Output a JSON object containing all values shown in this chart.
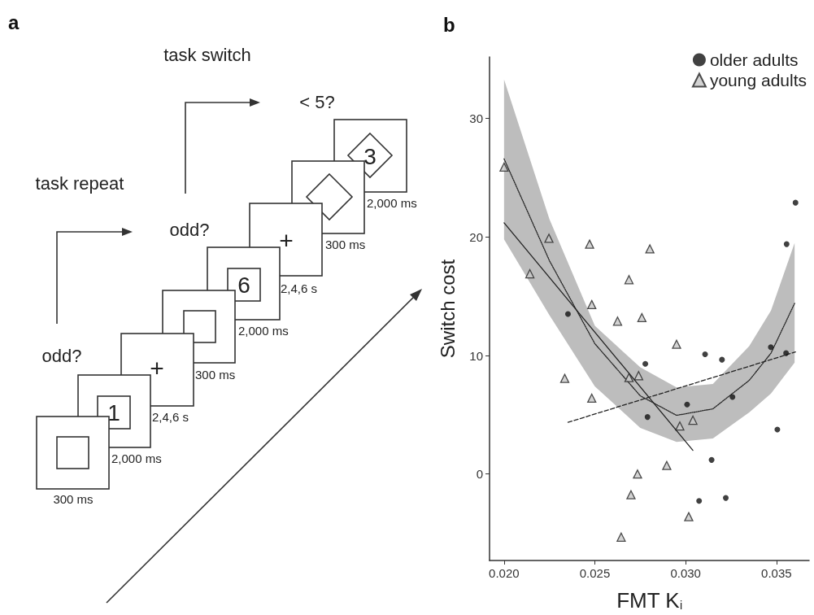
{
  "chart_data": [
    {
      "type": "other",
      "title": "a",
      "annotations": [
        "task switch",
        "< 5?",
        "task repeat",
        "odd?",
        "odd?",
        "300 ms",
        "2,000 ms",
        "2,4,6 s",
        "300 ms",
        "2,000 ms",
        "2,4,6 s",
        "300 ms",
        "2,000 ms",
        "1",
        "+",
        "6",
        "+",
        "3"
      ]
    },
    {
      "type": "scatter",
      "title": "b",
      "xlabel": "FMT K$_{i}$",
      "ylabel": "Switch cost",
      "xlim": [
        0.0192,
        0.0368
      ],
      "xticks": [
        {
          "value": 0.02,
          "label": "0.020"
        },
        {
          "value": 0.025,
          "label": "0.025"
        },
        {
          "value": 0.03,
          "label": "0.030"
        },
        {
          "value": 0.035,
          "label": "0.035"
        }
      ],
      "ylim": [
        -7.3,
        35.2
      ],
      "yticks": [
        0,
        10,
        20,
        30
      ],
      "legend": "top right",
      "series": [
        {
          "type": "line",
          "color": "#222222",
          "marker": "none",
          "line_style": "dotted",
          "x": [
            0.02,
            0.0225,
            0.025,
            0.0275,
            0.0295,
            0.0315,
            0.0335,
            0.0347,
            0.036
          ],
          "values": [
            26.6,
            18.0,
            11.0,
            6.6,
            4.95,
            5.5,
            7.9,
            10.2,
            14.4
          ],
          "lower": [
            19.8,
            13.4,
            7.4,
            3.9,
            2.7,
            3.0,
            5.2,
            6.8,
            9.4
          ],
          "upper": [
            33.3,
            21.5,
            12.5,
            9.0,
            7.3,
            7.6,
            10.8,
            13.8,
            19.5
          ]
        },
        {
          "type": "line",
          "color": "#222222",
          "marker": "none",
          "line_style": "solid",
          "x": [
            0.02,
            0.0304
          ],
          "values": [
            21.2,
            2.0
          ]
        },
        {
          "type": "line",
          "color": "#222222",
          "marker": "none",
          "line_style": "dashed",
          "x": [
            0.02352,
            0.03605
          ],
          "values": [
            4.36,
            10.3
          ]
        },
        {
          "name": "older adults",
          "color": "#111111",
          "marker": "circle",
          "x": [
            0.03605,
            0.03556,
            0.02352,
            0.02778,
            0.03107,
            0.032,
            0.03469,
            0.03553,
            0.03258,
            0.03008,
            0.0279,
            0.03505,
            0.03143,
            0.03074,
            0.03221
          ],
          "values": [
            22.9,
            19.4,
            13.5,
            9.3,
            10.1,
            9.65,
            10.7,
            10.2,
            6.5,
            5.87,
            4.81,
            3.75,
            1.19,
            -2.27,
            -2.02
          ]
        },
        {
          "name": "young adults",
          "color": "#c8c8c8",
          "marker": "triangle",
          "x": [
            0.02,
            0.02247,
            0.02142,
            0.02471,
            0.02483,
            0.02688,
            0.02803,
            0.02625,
            0.02759,
            0.0295,
            0.02334,
            0.02483,
            0.02688,
            0.02741,
            0.02968,
            0.0304,
            0.02896,
            0.02735,
            0.02699,
            0.03017,
            0.02645
          ],
          "values": [
            25.9,
            19.9,
            16.9,
            19.4,
            14.3,
            16.4,
            19.0,
            12.9,
            13.2,
            10.95,
            8.07,
            6.4,
            8.14,
            8.3,
            4.05,
            4.54,
            0.72,
            0.0,
            -1.75,
            -3.6,
            -5.33
          ]
        }
      ]
    }
  ]
}
